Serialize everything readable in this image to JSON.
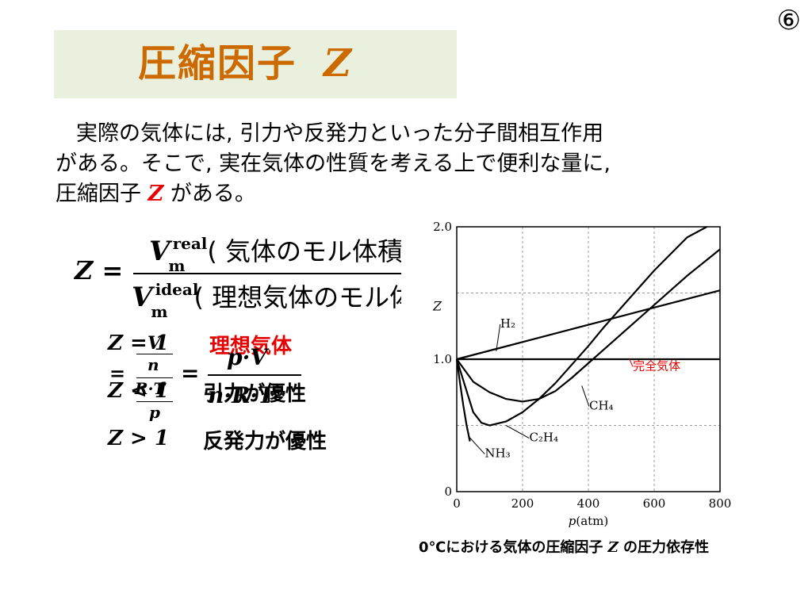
{
  "page_number": "⑥",
  "title": "圧縮因子",
  "title_symbol": "Z",
  "intro": {
    "line1": "実際の気体には, 引力や反発力といった分子間相互作用",
    "line2": "がある。そこで, 実在気体の性質を考える上で便利な量に,",
    "line3_prefix": "圧縮因子",
    "line3_symbol": "Z",
    "line3_suffix": "がある。"
  },
  "formula": {
    "lhs": "Z =",
    "num_var": "V",
    "num_sub": "m",
    "num_sup": "real",
    "num_note": "( 気体のモル体積)",
    "den_var": "V",
    "den_sub": "m",
    "den_sup": "ideal",
    "den_note": "( 理想気体のモル体積)",
    "frac2_num": "V",
    "frac2_mid": "n",
    "frac2_den1": "R·T",
    "frac2_den2": "p",
    "frac3_num": "p·V",
    "frac3_den": "n·R·T",
    "eq": "=",
    "eq2": "="
  },
  "cases": [
    {
      "expr": "Z = 1",
      "text": "理想気体",
      "color": "#e60000"
    },
    {
      "expr": "Z < 1",
      "text": "引力が優性",
      "color": "#000000"
    },
    {
      "expr": "Z > 1",
      "text": "反発力が優性",
      "color": "#000000"
    }
  ],
  "chart_data": {
    "type": "line",
    "xlabel_var": "p",
    "xlabel_unit": "(atm)",
    "ylabel": "Z",
    "xlim": [
      0,
      800
    ],
    "ylim": [
      0,
      2.0
    ],
    "xticks": [
      0,
      200,
      400,
      600,
      800
    ],
    "yticks": [
      0,
      1.0,
      2.0
    ],
    "ytick_labels": [
      "0",
      "1.0",
      "2.0"
    ],
    "grid": true,
    "series": [
      {
        "name": "H₂",
        "x": [
          0,
          200,
          400,
          600,
          800
        ],
        "y": [
          1.0,
          1.13,
          1.26,
          1.39,
          1.52
        ]
      },
      {
        "name": "完全気体",
        "x": [
          0,
          800
        ],
        "y": [
          1.0,
          1.0
        ]
      },
      {
        "name": "CH₄",
        "x": [
          0,
          50,
          100,
          150,
          200,
          250,
          300,
          350,
          400,
          450,
          500,
          600,
          700,
          800
        ],
        "y": [
          1.0,
          0.83,
          0.75,
          0.7,
          0.68,
          0.7,
          0.76,
          0.86,
          0.97,
          1.08,
          1.19,
          1.41,
          1.63,
          1.83
        ]
      },
      {
        "name": "C₂H₄",
        "x": [
          0,
          25,
          50,
          75,
          100,
          150,
          200,
          250,
          300,
          350,
          400,
          450,
          500,
          600,
          700,
          760
        ],
        "y": [
          1.0,
          0.8,
          0.6,
          0.52,
          0.5,
          0.53,
          0.6,
          0.7,
          0.82,
          0.96,
          1.1,
          1.25,
          1.39,
          1.67,
          1.92,
          2.0
        ]
      },
      {
        "name": "NH₃",
        "x": [
          0,
          10,
          20,
          30,
          40
        ],
        "y": [
          1.0,
          0.82,
          0.65,
          0.5,
          0.38
        ]
      }
    ],
    "annotations": [
      "H₂",
      "完全気体",
      "CH₄",
      "C₂H₄",
      "NH₃"
    ],
    "annotation_color": "#e60000"
  },
  "caption": {
    "prefix": "0℃における気体の圧縮因子",
    "symbol": "Z",
    "suffix": "の圧力依存性"
  }
}
